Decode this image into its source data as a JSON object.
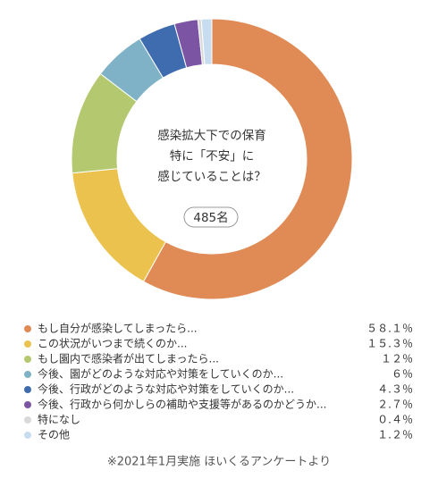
{
  "chart_data": {
    "type": "pie",
    "center_text": [
      "感染拡大下での保育",
      "特に「不安」に",
      "感じていることは？"
    ],
    "badge": "485名",
    "categories": [
      "もし自分が感染してしまったら...",
      "この状況がいつまで続くのか...",
      "もし園内で感染者が出てしまったら...",
      "今後、園がどのような対応や対策をしていくのか...",
      "今後、行政がどのような対応や対策をしていくのか...",
      "今後、行政から何かしらの補助や支援等があるのかどうか...",
      "特になし",
      "その他"
    ],
    "values": [
      58.1,
      15.3,
      12,
      6,
      4.3,
      2.7,
      0.4,
      1.2
    ],
    "value_labels": [
      "５８.１％",
      "１５.３％",
      "１２％",
      "６％",
      "４.３％",
      "２.７％",
      "０.４％",
      "１.２％"
    ],
    "colors": [
      "#e08b56",
      "#ecc24f",
      "#b4c96f",
      "#7fb2c6",
      "#3f6cae",
      "#7b55a4",
      "#d9d9d9",
      "#c8dcef"
    ],
    "footnote": "※2021年1月実施 ほいくるアンケートより"
  }
}
